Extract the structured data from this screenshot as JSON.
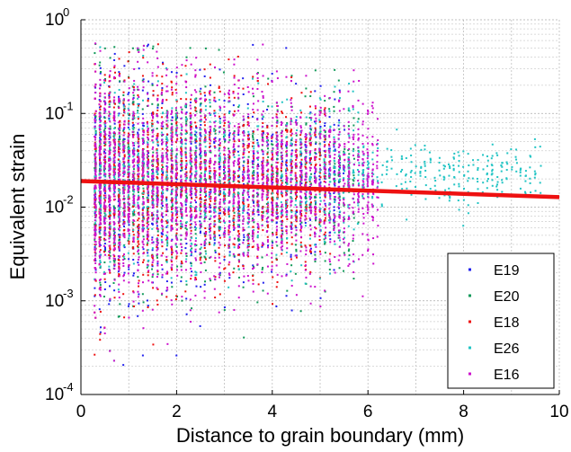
{
  "chart_data": {
    "type": "scatter",
    "title": "",
    "xlabel": "Distance to grain boundary (mm)",
    "ylabel": "Equivalent strain",
    "xlim": [
      0,
      10
    ],
    "ylim": [
      0.0001,
      1
    ],
    "yscale": "log",
    "grid": true,
    "legend_position": "lower-right",
    "x_ticks": [
      {
        "value": 0,
        "label": "0"
      },
      {
        "value": 2,
        "label": "2"
      },
      {
        "value": 4,
        "label": "4"
      },
      {
        "value": 6,
        "label": "6"
      },
      {
        "value": 8,
        "label": "8"
      },
      {
        "value": 10,
        "label": "10"
      }
    ],
    "y_ticks": [
      {
        "value": 1,
        "base": "10",
        "exp": "0"
      },
      {
        "value": 0.1,
        "base": "10",
        "exp": "-1"
      },
      {
        "value": 0.01,
        "base": "10",
        "exp": "-2"
      },
      {
        "value": 0.001,
        "base": "10",
        "exp": "-3"
      },
      {
        "value": 0.0001,
        "base": "10",
        "exp": "-4"
      }
    ],
    "series": [
      {
        "name": "E19",
        "color": "#2222ee",
        "x_range": [
          0.3,
          5.5
        ],
        "y_median": 0.018,
        "y_spread_decades": 0.55,
        "n_points": 1100
      },
      {
        "name": "E20",
        "color": "#129a5a",
        "x_range": [
          0.3,
          5.8
        ],
        "y_median": 0.018,
        "y_spread_decades": 0.55,
        "n_points": 1100
      },
      {
        "name": "E18",
        "color": "#ee1111",
        "x_range": [
          0.3,
          5.2
        ],
        "y_median": 0.018,
        "y_spread_decades": 0.55,
        "n_points": 1500
      },
      {
        "name": "E26",
        "color": "#22c4c4",
        "x_range": [
          0.3,
          9.6
        ],
        "y_median": 0.02,
        "y_spread_decades": 0.45,
        "n_points": 1300
      },
      {
        "name": "E16",
        "color": "#cc11cc",
        "x_range": [
          0.3,
          6.2
        ],
        "y_median": 0.018,
        "y_spread_decades": 0.55,
        "n_points": 2600
      }
    ],
    "trend_line": {
      "color": "#ee1111",
      "points": [
        [
          0,
          0.019
        ],
        [
          10,
          0.0128
        ]
      ]
    }
  }
}
